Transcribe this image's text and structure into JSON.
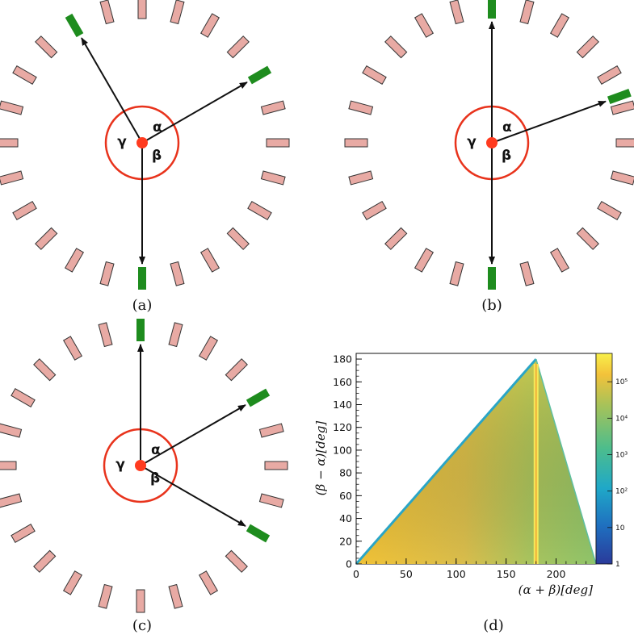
{
  "panels": [
    {
      "id": "a",
      "caption": "(a)",
      "alpha": "α",
      "beta": "β",
      "gamma": "γ",
      "hit_angles_deg": [
        -30,
        60,
        180
      ]
    },
    {
      "id": "b",
      "caption": "(b)",
      "alpha": "α",
      "beta": "β",
      "gamma": "γ",
      "hit_angles_deg": [
        0,
        70,
        180
      ]
    },
    {
      "id": "c",
      "caption": "(c)",
      "alpha": "α",
      "beta": "β",
      "gamma": "γ",
      "hit_angles_deg": [
        0,
        60,
        120
      ]
    }
  ],
  "detector": {
    "segments": 24,
    "segment_color": "#e8aaa4",
    "segment_stroke": "#333333",
    "hit_color": "#1e8c1e",
    "circle_color": "#e8331c",
    "origin_color": "#ff3b1f"
  },
  "caption_d": "(d)",
  "chart_data": {
    "type": "heatmap",
    "xlabel": "(α + β)[deg]",
    "ylabel": "(β − α)[deg]",
    "xlim": [
      0,
      240
    ],
    "ylim": [
      0,
      185
    ],
    "xticks": [
      "0",
      "50",
      "100",
      "150",
      "200"
    ],
    "xtick_values": [
      0,
      50,
      100,
      150,
      200
    ],
    "yticks": [
      "0",
      "20",
      "40",
      "60",
      "80",
      "100",
      "120",
      "140",
      "160",
      "180"
    ],
    "ytick_values": [
      0,
      20,
      40,
      60,
      80,
      100,
      120,
      140,
      160,
      180
    ],
    "region_vertices": [
      [
        0,
        0
      ],
      [
        180,
        180
      ],
      [
        240,
        0
      ]
    ],
    "peak_line_x": 180,
    "z_scale": "log",
    "colorbar_ticks": [
      "1",
      "10",
      "10²",
      "10³",
      "10⁴",
      "10⁵"
    ],
    "colorbar_tick_values": [
      1,
      10,
      100,
      1000,
      10000,
      100000
    ],
    "zlim": [
      1,
      600000
    ]
  }
}
